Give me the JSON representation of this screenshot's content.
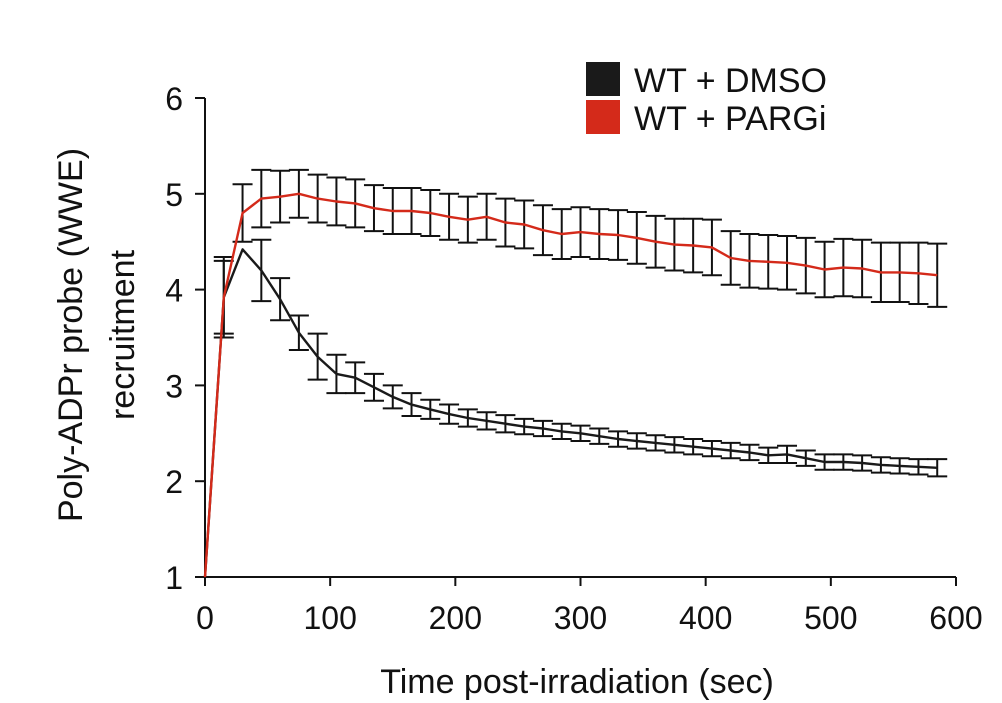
{
  "chart_data": {
    "type": "line",
    "title": "",
    "xlabel": "Time post-irradiation (sec)",
    "ylabel_lines": [
      "Poly-ADPr probe (WWE)",
      "recruitment"
    ],
    "xlim": [
      0,
      600
    ],
    "ylim": [
      1,
      6
    ],
    "xticks": [
      0,
      100,
      200,
      300,
      400,
      500,
      600
    ],
    "yticks": [
      1,
      2,
      3,
      4,
      5,
      6
    ],
    "grid": false,
    "legend_position": "top-right",
    "series": [
      {
        "name": "WT + DMSO",
        "color": "#1a1a1a",
        "x": [
          0,
          15,
          30,
          45,
          60,
          75,
          90,
          105,
          120,
          135,
          150,
          165,
          180,
          195,
          210,
          225,
          240,
          255,
          270,
          285,
          300,
          315,
          330,
          345,
          360,
          375,
          390,
          405,
          420,
          435,
          450,
          465,
          480,
          495,
          510,
          525,
          540,
          555,
          570,
          585
        ],
        "y": [
          1.0,
          3.92,
          4.42,
          4.2,
          3.9,
          3.55,
          3.3,
          3.12,
          3.08,
          2.98,
          2.88,
          2.8,
          2.75,
          2.7,
          2.66,
          2.63,
          2.6,
          2.57,
          2.55,
          2.52,
          2.5,
          2.47,
          2.44,
          2.42,
          2.4,
          2.38,
          2.36,
          2.34,
          2.32,
          2.3,
          2.27,
          2.28,
          2.24,
          2.2,
          2.2,
          2.19,
          2.17,
          2.16,
          2.15,
          2.14
        ],
        "error": [
          0,
          0.38,
          0.0,
          0.32,
          0.22,
          0.18,
          0.24,
          0.2,
          0.16,
          0.14,
          0.12,
          0.12,
          0.1,
          0.1,
          0.09,
          0.09,
          0.09,
          0.08,
          0.08,
          0.08,
          0.08,
          0.08,
          0.08,
          0.08,
          0.08,
          0.08,
          0.08,
          0.08,
          0.08,
          0.08,
          0.08,
          0.09,
          0.08,
          0.08,
          0.08,
          0.08,
          0.08,
          0.08,
          0.08,
          0.09
        ]
      },
      {
        "name": "WT + PARGi",
        "color": "#d42a1a",
        "x": [
          0,
          15,
          30,
          45,
          60,
          75,
          90,
          105,
          120,
          135,
          150,
          165,
          180,
          195,
          210,
          225,
          240,
          255,
          270,
          285,
          300,
          315,
          330,
          345,
          360,
          375,
          390,
          405,
          420,
          435,
          450,
          465,
          480,
          495,
          510,
          525,
          540,
          555,
          570,
          585
        ],
        "y": [
          1.0,
          3.92,
          4.8,
          4.95,
          4.97,
          5.0,
          4.95,
          4.92,
          4.9,
          4.85,
          4.82,
          4.82,
          4.8,
          4.76,
          4.73,
          4.76,
          4.7,
          4.68,
          4.62,
          4.58,
          4.6,
          4.58,
          4.57,
          4.54,
          4.5,
          4.47,
          4.46,
          4.44,
          4.33,
          4.3,
          4.29,
          4.28,
          4.25,
          4.21,
          4.23,
          4.22,
          4.18,
          4.18,
          4.17,
          4.15
        ],
        "error": [
          0,
          0.42,
          0.3,
          0.3,
          0.27,
          0.25,
          0.25,
          0.25,
          0.25,
          0.24,
          0.24,
          0.24,
          0.24,
          0.24,
          0.24,
          0.24,
          0.25,
          0.25,
          0.26,
          0.26,
          0.26,
          0.26,
          0.26,
          0.27,
          0.27,
          0.27,
          0.28,
          0.29,
          0.28,
          0.28,
          0.28,
          0.28,
          0.29,
          0.29,
          0.3,
          0.3,
          0.31,
          0.31,
          0.32,
          0.33
        ]
      }
    ]
  }
}
